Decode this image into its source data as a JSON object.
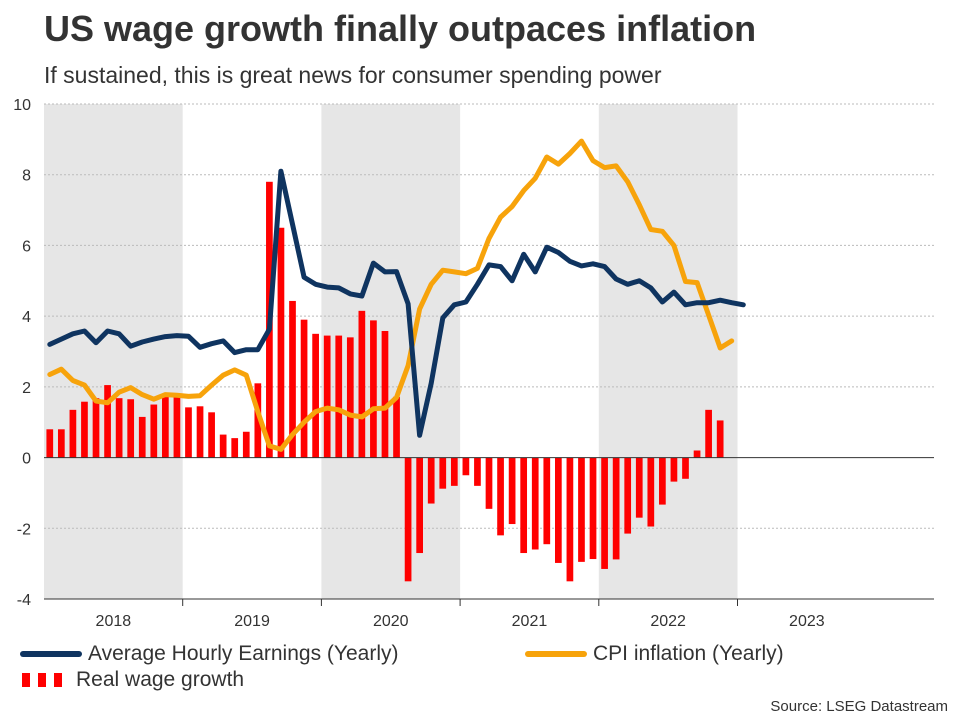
{
  "header": {
    "title": "US wage growth finally outpaces inflation",
    "subtitle": "If sustained, this is great news for consumer spending power"
  },
  "source": "Source: LSEG Datastream",
  "colors": {
    "earnings": "#0f3460",
    "cpi": "#f7a30b",
    "real": "#ff0000",
    "shade": "#e6e6e6",
    "grid": "#bbbbbb",
    "axis": "#333333"
  },
  "chart_data": {
    "type": "bar+line",
    "title": "US wage growth finally outpaces inflation",
    "subtitle": "If sustained, this is great news for consumer spending power",
    "ylim": [
      -4,
      10
    ],
    "yticks": [
      -4,
      -2,
      0,
      2,
      4,
      6,
      8,
      10
    ],
    "grid": true,
    "start": "2018-01",
    "months_total": 77,
    "year_labels": [
      "2018",
      "2019",
      "2020",
      "2021",
      "2022",
      "2023"
    ],
    "shaded_years": [
      "2018",
      "2020",
      "2022"
    ],
    "legend_position": "bottom",
    "series": [
      {
        "name": "Average Hourly Earnings (Yearly)",
        "kind": "line",
        "color": "#0f3460",
        "values": [
          3.2,
          3.35,
          3.5,
          3.58,
          3.25,
          3.58,
          3.5,
          3.15,
          3.27,
          3.35,
          3.42,
          3.45,
          3.43,
          3.12,
          3.22,
          3.3,
          2.97,
          3.05,
          3.05,
          3.63,
          8.1,
          6.6,
          5.1,
          4.9,
          4.82,
          4.8,
          4.63,
          4.57,
          5.5,
          5.25,
          5.26,
          4.35,
          0.63,
          2.1,
          3.95,
          4.32,
          4.4,
          4.9,
          5.45,
          5.4,
          5.0,
          5.75,
          5.25,
          5.95,
          5.8,
          5.55,
          5.42,
          5.48,
          5.4,
          5.05,
          4.9,
          5.0,
          4.8,
          4.4,
          4.68,
          4.32,
          4.38,
          4.38,
          4.45,
          4.38,
          4.32
        ]
      },
      {
        "name": "CPI inflation (Yearly)",
        "kind": "line",
        "color": "#f7a30b",
        "values": [
          2.35,
          2.5,
          2.18,
          2.05,
          1.6,
          1.55,
          1.85,
          1.98,
          1.78,
          1.65,
          1.78,
          1.76,
          1.73,
          1.75,
          2.05,
          2.33,
          2.48,
          2.33,
          1.3,
          0.33,
          0.23,
          0.65,
          1.0,
          1.3,
          1.4,
          1.35,
          1.2,
          1.15,
          1.38,
          1.4,
          1.7,
          2.6,
          4.2,
          4.9,
          5.3,
          5.25,
          5.2,
          5.35,
          6.2,
          6.8,
          7.1,
          7.55,
          7.9,
          8.5,
          8.3,
          8.6,
          8.95,
          8.4,
          8.2,
          8.25,
          7.8,
          7.15,
          6.45,
          6.4,
          6.0,
          4.98,
          4.95,
          4.03,
          3.1,
          3.3
        ]
      },
      {
        "name": "Real wage growth",
        "kind": "bar",
        "color": "#ff0000",
        "values": [
          0.8,
          0.8,
          1.35,
          1.58,
          1.68,
          2.05,
          1.68,
          1.65,
          1.15,
          1.5,
          1.72,
          1.75,
          1.42,
          1.45,
          1.28,
          0.65,
          0.55,
          0.73,
          2.1,
          7.8,
          6.5,
          4.43,
          3.9,
          3.5,
          3.45,
          3.45,
          3.4,
          4.15,
          3.88,
          3.58,
          1.72,
          -3.5,
          -2.7,
          -1.3,
          -0.88,
          -0.8,
          -0.5,
          -0.8,
          -1.45,
          -2.2,
          -1.88,
          -2.7,
          -2.6,
          -2.45,
          -2.98,
          -3.5,
          -2.95,
          -2.87,
          -3.15,
          -2.88,
          -2.15,
          -1.7,
          -1.95,
          -1.33,
          -0.68,
          -0.6,
          0.2,
          1.35,
          1.05
        ]
      }
    ]
  }
}
